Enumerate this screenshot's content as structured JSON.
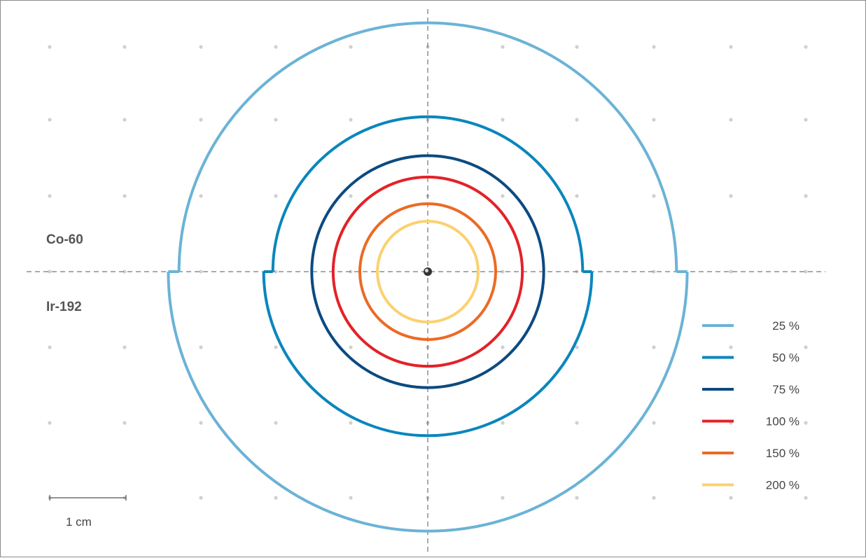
{
  "sources": {
    "upper": "Co-60",
    "lower": "Ir-192"
  },
  "scale_bar": {
    "label": "1 cm"
  },
  "isodose_legend": [
    {
      "label": "25 %",
      "color": "#6bb3d6"
    },
    {
      "label": "50 %",
      "color": "#0a86bd"
    },
    {
      "label": "75 %",
      "color": "#0c4a80"
    },
    {
      "label": "100 %",
      "color": "#e32228"
    },
    {
      "label": "150 %",
      "color": "#ec6a24"
    },
    {
      "label": "200 %",
      "color": "#fbd170"
    }
  ],
  "chart_data": {
    "type": "isodose contour diagram",
    "units": "cm",
    "levels_percent": [
      25,
      50,
      75,
      100,
      150,
      200
    ],
    "colors": [
      "#6bb3d6",
      "#0a86bd",
      "#0c4a80",
      "#e32228",
      "#ec6a24",
      "#fbd170"
    ],
    "co60_radius_cm": [
      3.26,
      2.03,
      1.52,
      1.24,
      0.89,
      0.66
    ],
    "ir192_radius_cm": [
      3.4,
      2.15,
      1.52,
      1.24,
      0.89,
      0.66
    ],
    "legend_position": "bottom-right",
    "grid": "dot grid, 1 cm spacing",
    "axes": "dashed horizontal and vertical lines through the source"
  }
}
